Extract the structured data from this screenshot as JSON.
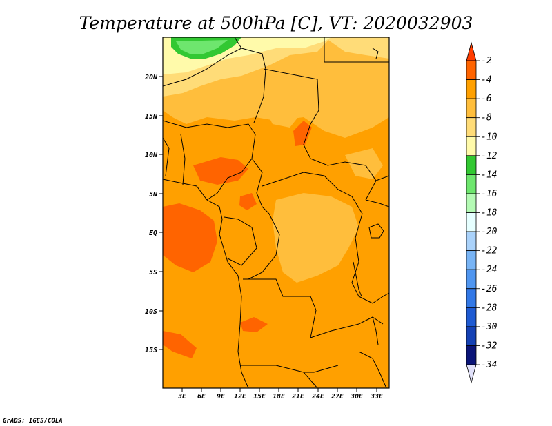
{
  "title": "Temperature at 500hPa [C], VT: 2020032903",
  "credit": "GrADS: IGES/COLA",
  "map": {
    "lat_labels": [
      "20N",
      "15N",
      "10N",
      "5N",
      "EQ",
      "5S",
      "10S",
      "15S"
    ],
    "lon_labels": [
      "3E",
      "6E",
      "9E",
      "12E",
      "15E",
      "18E",
      "21E",
      "24E",
      "27E",
      "30E",
      "33E"
    ],
    "background_color": "#ffa000"
  },
  "colorbar": {
    "labels": [
      "-2",
      "-4",
      "-6",
      "-8",
      "-10",
      "-12",
      "-14",
      "-16",
      "-18",
      "-20",
      "-22",
      "-24",
      "-26",
      "-28",
      "-30",
      "-32",
      "-34"
    ],
    "colors": [
      "#ff3c00",
      "#ff6400",
      "#ffa000",
      "#ffbe3c",
      "#ffdc78",
      "#fffaaa",
      "#32c832",
      "#6ee66e",
      "#b4fab4",
      "#e6ffff",
      "#aad2fa",
      "#78b4f5",
      "#5096f0",
      "#3278e6",
      "#1e5ad2",
      "#1441b4",
      "#0a1478",
      "#e1e1fa"
    ]
  }
}
